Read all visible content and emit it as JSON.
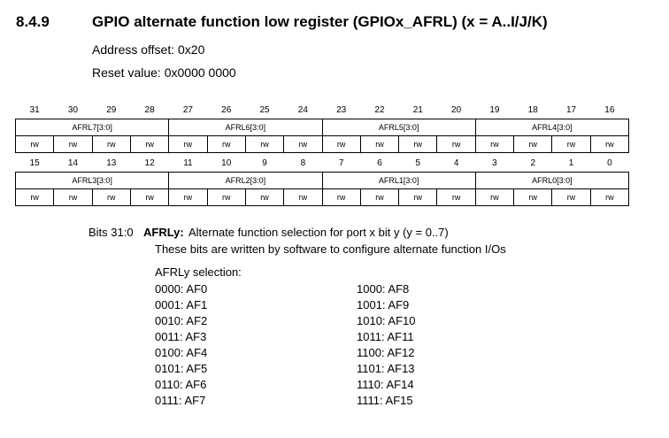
{
  "section": {
    "number": "8.4.9",
    "title": "GPIO alternate function low register (GPIOx_AFRL) (x = A..I/J/K)",
    "address_offset": "Address offset: 0x20",
    "reset_value": "Reset value: 0x0000 0000"
  },
  "register": {
    "high_bits": [
      "31",
      "30",
      "29",
      "28",
      "27",
      "26",
      "25",
      "24",
      "23",
      "22",
      "21",
      "20",
      "19",
      "18",
      "17",
      "16"
    ],
    "high_fields": [
      "AFRL7[3:0]",
      "AFRL6[3:0]",
      "AFRL5[3:0]",
      "AFRL4[3:0]"
    ],
    "low_bits": [
      "15",
      "14",
      "13",
      "12",
      "11",
      "10",
      "9",
      "8",
      "7",
      "6",
      "5",
      "4",
      "3",
      "2",
      "1",
      "0"
    ],
    "low_fields": [
      "AFRL3[3:0]",
      "AFRL2[3:0]",
      "AFRL1[3:0]",
      "AFRL0[3:0]"
    ],
    "access": "rw"
  },
  "description": {
    "bits": "Bits 31:0",
    "field": "AFRLy:",
    "summary": "Alternate function selection for port x bit y (y = 0..7)",
    "detail": "These bits are written by software to configure alternate function I/Os",
    "selection_title": "AFRLy selection:",
    "left_column": [
      "0000: AF0",
      "0001: AF1",
      "0010: AF2",
      "0011: AF3",
      "0100: AF4",
      "0101: AF5",
      "0110: AF6",
      "0111: AF7"
    ],
    "right_column": [
      "1000: AF8",
      "1001: AF9",
      "1010: AF10",
      "1011: AF11",
      "1100: AF12",
      "1101: AF13",
      "1110: AF14",
      "1111: AF15"
    ]
  }
}
